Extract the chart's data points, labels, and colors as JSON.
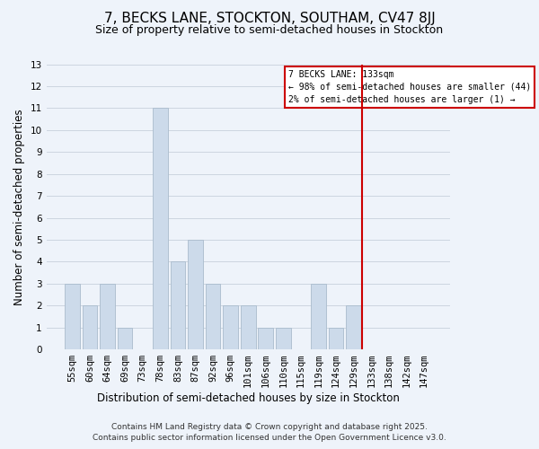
{
  "title": "7, BECKS LANE, STOCKTON, SOUTHAM, CV47 8JJ",
  "subtitle": "Size of property relative to semi-detached houses in Stockton",
  "xlabel": "Distribution of semi-detached houses by size in Stockton",
  "ylabel": "Number of semi-detached properties",
  "bar_labels": [
    "55sqm",
    "60sqm",
    "64sqm",
    "69sqm",
    "73sqm",
    "78sqm",
    "83sqm",
    "87sqm",
    "92sqm",
    "96sqm",
    "101sqm",
    "106sqm",
    "110sqm",
    "115sqm",
    "119sqm",
    "124sqm",
    "129sqm",
    "133sqm",
    "138sqm",
    "142sqm",
    "147sqm"
  ],
  "bar_values": [
    3,
    2,
    3,
    1,
    0,
    11,
    4,
    5,
    3,
    2,
    2,
    1,
    1,
    0,
    3,
    1,
    2,
    0,
    0,
    0,
    0
  ],
  "bar_color": "#ccdaea",
  "bar_edge_color": "#aabccc",
  "background_color": "#eef3fa",
  "grid_color": "#ccd5e0",
  "title_fontsize": 11,
  "subtitle_fontsize": 9,
  "axis_label_fontsize": 8.5,
  "tick_fontsize": 7.5,
  "annotation_text_line1": "7 BECKS LANE: 133sqm",
  "annotation_text_line2": "← 98% of semi-detached houses are smaller (44)",
  "annotation_text_line3": "2% of semi-detached houses are larger (1) →",
  "annotation_box_facecolor": "#ffffff",
  "annotation_border_color": "#cc0000",
  "vline_color": "#cc0000",
  "ylim": [
    0,
    13
  ],
  "yticks": [
    0,
    1,
    2,
    3,
    4,
    5,
    6,
    7,
    8,
    9,
    10,
    11,
    12,
    13
  ],
  "footer_line1": "Contains HM Land Registry data © Crown copyright and database right 2025.",
  "footer_line2": "Contains public sector information licensed under the Open Government Licence v3.0.",
  "footer_fontsize": 6.5
}
